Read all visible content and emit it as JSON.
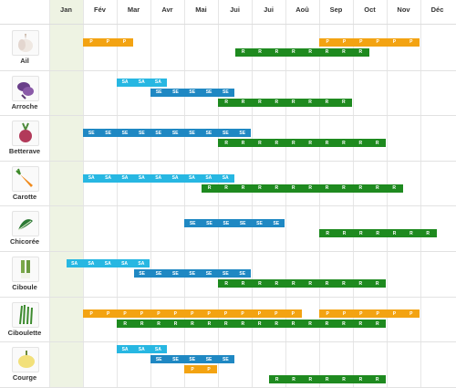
{
  "months": [
    "Jan",
    "Fév",
    "Mar",
    "Avr",
    "Mai",
    "Jui",
    "Jui",
    "Aoû",
    "Sep",
    "Oct",
    "Nov",
    "Déc"
  ],
  "colors": {
    "P": "#f3a312",
    "R": "#1e8a1f",
    "SE": "#1f88c3",
    "SA": "#27b7e2"
  },
  "vegetables": [
    {
      "name": "Ail",
      "icon": "garlic-icon",
      "bands": [
        [
          {
            "type": "P",
            "start": 1,
            "cells": 3
          },
          {
            "type": "P",
            "start": 8,
            "cells": 6
          }
        ],
        [
          {
            "type": "R",
            "start": 5.5,
            "cells": 8
          }
        ]
      ]
    },
    {
      "name": "Arroche",
      "icon": "orache-icon",
      "bands": [
        [
          {
            "type": "SA",
            "start": 2,
            "cells": 3
          }
        ],
        [
          {
            "type": "SE",
            "start": 3,
            "cells": 5
          }
        ],
        [
          {
            "type": "R",
            "start": 5,
            "cells": 8
          }
        ]
      ]
    },
    {
      "name": "Betterave",
      "icon": "beet-icon",
      "bands": [
        [
          {
            "type": "SE",
            "start": 1,
            "cells": 10
          }
        ],
        [
          {
            "type": "R",
            "start": 5,
            "cells": 10
          }
        ]
      ]
    },
    {
      "name": "Carotte",
      "icon": "carrot-icon",
      "bands": [
        [
          {
            "type": "SA",
            "start": 1,
            "cells": 9
          }
        ],
        [
          {
            "type": "R",
            "start": 4.5,
            "cells": 12
          }
        ]
      ]
    },
    {
      "name": "Chicorée",
      "icon": "chicory-icon",
      "bands": [
        [
          {
            "type": "SE",
            "start": 4,
            "cells": 6
          }
        ],
        [
          {
            "type": "R",
            "start": 8,
            "cells": 7
          }
        ]
      ]
    },
    {
      "name": "Ciboule",
      "icon": "welsh-onion-icon",
      "bands": [
        [
          {
            "type": "SA",
            "start": 0.5,
            "cells": 5
          }
        ],
        [
          {
            "type": "SE",
            "start": 2.5,
            "cells": 7
          }
        ],
        [
          {
            "type": "R",
            "start": 5,
            "cells": 10
          }
        ]
      ]
    },
    {
      "name": "Ciboulette",
      "icon": "chive-icon",
      "bands": [
        [
          {
            "type": "P",
            "start": 1,
            "cells": 13
          },
          {
            "type": "P",
            "start": 8,
            "cells": 6
          }
        ],
        [
          {
            "type": "R",
            "start": 2,
            "cells": 16
          }
        ]
      ]
    },
    {
      "name": "Courge",
      "icon": "squash-icon",
      "bands": [
        [
          {
            "type": "SA",
            "start": 2,
            "cells": 3
          }
        ],
        [
          {
            "type": "SE",
            "start": 3,
            "cells": 5
          }
        ],
        [
          {
            "type": "P",
            "start": 4,
            "cells": 2
          }
        ],
        [
          {
            "type": "R",
            "start": 6.5,
            "cells": 7
          }
        ]
      ]
    }
  ]
}
